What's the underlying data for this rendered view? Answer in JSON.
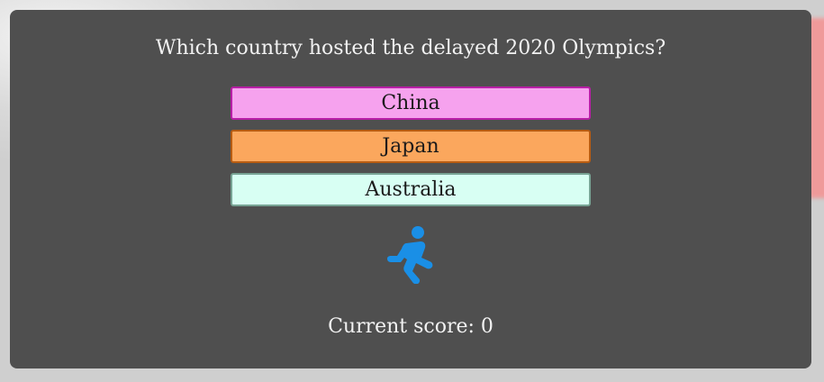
{
  "quiz": {
    "question": "Which country hosted the delayed 2020 Olympics?",
    "answers": [
      {
        "label": "China",
        "color": "#f6a2ee"
      },
      {
        "label": "Japan",
        "color": "#fba75d"
      },
      {
        "label": "Australia",
        "color": "#d8fff3"
      }
    ],
    "icon": "running-person-icon",
    "icon_color": "#1a8fe6",
    "score_text": "Current score: 0"
  }
}
